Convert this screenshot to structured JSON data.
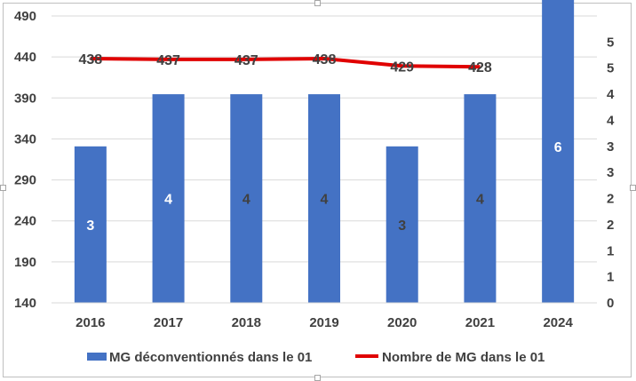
{
  "chart_data": {
    "type": "bar",
    "categories": [
      "2016",
      "2017",
      "2018",
      "2019",
      "2020",
      "2021",
      "2024"
    ],
    "series": [
      {
        "name": "MG déconventionnés dans le 01",
        "type": "bar",
        "axis": "right",
        "values": [
          3,
          4,
          4,
          4,
          3,
          4,
          6
        ],
        "data_labels": [
          "3",
          "4",
          "4",
          "4",
          "3",
          "4",
          "6"
        ],
        "color": "#4472C4"
      },
      {
        "name": "Nombre de MG dans le 01",
        "type": "line",
        "axis": "left",
        "values": [
          438,
          437,
          437,
          438,
          429,
          428,
          null
        ],
        "data_labels": [
          "438",
          "437",
          "437",
          "438",
          "429",
          "428"
        ],
        "color": "#E00000"
      }
    ],
    "y_left": {
      "ylim": [
        140,
        490
      ],
      "ticks": [
        "140",
        "190",
        "240",
        "290",
        "340",
        "390",
        "440",
        "490"
      ]
    },
    "y_right": {
      "ylim": [
        0,
        5.5
      ],
      "ticks": [
        "0",
        "1",
        "1",
        "2",
        "2",
        "3",
        "3",
        "4",
        "4",
        "5",
        "5"
      ]
    },
    "grid": true,
    "legend_position": "bottom"
  }
}
